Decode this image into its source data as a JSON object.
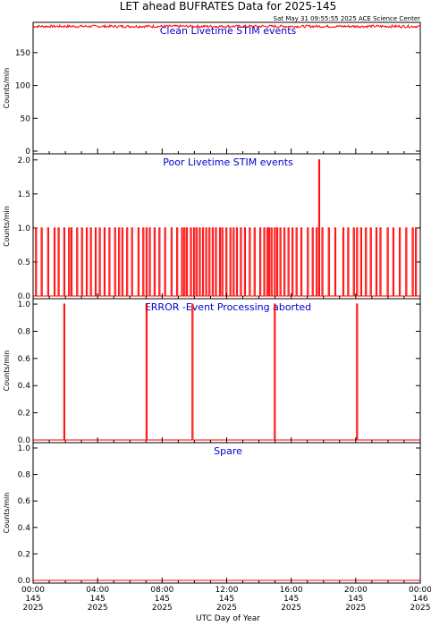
{
  "title": "LET ahead BUFRATES Data for 2025-145",
  "timestamp": "Sat May 31 09:55:55 2025 ACE Science Center",
  "xlabel": "UTC Day of Year",
  "colors": {
    "data": "#ff0000",
    "panel_label": "#0000cc",
    "axes": "#000000"
  },
  "x_ticks": [
    {
      "l1": "00:00",
      "l2": "145",
      "l3": "2025"
    },
    {
      "l1": "04:00",
      "l2": "145",
      "l3": "2025"
    },
    {
      "l1": "08:00",
      "l2": "145",
      "l3": "2025"
    },
    {
      "l1": "12:00",
      "l2": "145",
      "l3": "2025"
    },
    {
      "l1": "16:00",
      "l2": "145",
      "l3": "2025"
    },
    {
      "l1": "20:00",
      "l2": "145",
      "l3": "2025"
    },
    {
      "l1": "00:00",
      "l2": "146",
      "l3": "2025"
    }
  ],
  "chart_data": [
    {
      "type": "line",
      "label": "Clean Livetime STIM events",
      "ylabel": "Counts/min",
      "ylim": [
        0,
        192
      ],
      "yticks": [
        "0",
        "50",
        "100",
        "150"
      ],
      "xlim_hours": [
        0,
        24
      ],
      "baseline": 190,
      "noise_range": [
        188,
        192
      ],
      "spikes": []
    },
    {
      "type": "line",
      "label": "Poor Livetime STIM events",
      "ylabel": "Counts/min",
      "ylim": [
        0,
        2.05
      ],
      "yticks": [
        "0.0",
        "0.5",
        "1.0",
        "1.5",
        "2.0"
      ],
      "xlim_hours": [
        0,
        24
      ],
      "baseline": 0,
      "spikes_value": 1,
      "spikes_hours": [
        0.15,
        0.5,
        0.9,
        1.3,
        1.55,
        1.9,
        2.2,
        2.35,
        2.7,
        3.0,
        3.3,
        3.55,
        3.85,
        4.1,
        4.4,
        4.7,
        5.05,
        5.3,
        5.5,
        5.8,
        6.1,
        6.5,
        6.8,
        7.0,
        7.2,
        7.5,
        7.8,
        8.15,
        8.55,
        8.9,
        9.2,
        9.35,
        9.5,
        9.75,
        9.95,
        10.1,
        10.3,
        10.5,
        10.7,
        10.9,
        11.1,
        11.3,
        11.55,
        11.7,
        11.95,
        12.2,
        12.4,
        12.6,
        12.85,
        13.1,
        13.4,
        13.7,
        14.05,
        14.3,
        14.5,
        14.6,
        14.75,
        14.95,
        15.1,
        15.3,
        15.55,
        15.8,
        16.05,
        16.3,
        16.6,
        17.0,
        17.3,
        17.55,
        17.9,
        18.3,
        18.7,
        19.2,
        19.5,
        19.85,
        20.05,
        20.3,
        20.6,
        20.9,
        21.25,
        21.5,
        21.95,
        22.3,
        22.7,
        23.1,
        23.5,
        23.7
      ],
      "peak": {
        "hour": 17.7,
        "value": 2
      }
    },
    {
      "type": "line",
      "label": "ERROR -Event Processing aborted",
      "ylabel": "Counts/min",
      "ylim": [
        0,
        1.02
      ],
      "yticks": [
        "0.0",
        "0.2",
        "0.4",
        "0.6",
        "0.8",
        "1.0"
      ],
      "xlim_hours": [
        0,
        24
      ],
      "baseline": 0,
      "spikes_value": 1,
      "spikes_hours": [
        1.9,
        7.0,
        9.85,
        14.95,
        20.05
      ]
    },
    {
      "type": "line",
      "label": "Spare",
      "ylabel": "Counts/min",
      "ylim": [
        0,
        1.02
      ],
      "yticks": [
        "0.0",
        "0.2",
        "0.4",
        "0.6",
        "0.8",
        "1.0"
      ],
      "xlim_hours": [
        0,
        24
      ],
      "baseline": 0,
      "spikes_hours": []
    }
  ]
}
